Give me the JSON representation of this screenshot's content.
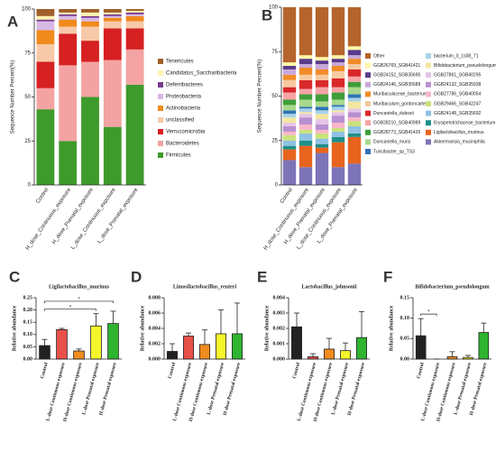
{
  "chart_data": [
    {
      "type": "stacked_bar",
      "panel": "A",
      "ylabel": "Sequence Number Percent(%)",
      "categories": [
        "Control",
        "H_dose_Continuous_exposure",
        "H_dose_Prenatal_exposure",
        "L_dose_Continuous_exposure",
        "L_dose_Prenatal_exposure"
      ],
      "ylim": [
        0,
        100
      ],
      "yticks": [
        0,
        25,
        50,
        75,
        100
      ],
      "series": [
        {
          "name": "Tenericutes",
          "color": "#a0602a",
          "values": [
            4,
            2,
            2,
            2,
            1
          ]
        },
        {
          "name": "Candidatus_Saccharibacteria",
          "color": "#fff3b0",
          "values": [
            2,
            1,
            2,
            1,
            1
          ]
        },
        {
          "name": "Deferribacteres",
          "color": "#7a3b8f",
          "values": [
            1,
            1,
            1,
            1,
            1
          ]
        },
        {
          "name": "Proteobacteria",
          "color": "#d7b9e6",
          "values": [
            5,
            2,
            2,
            1,
            1
          ]
        },
        {
          "name": "Actinobacteria",
          "color": "#f08a1c",
          "values": [
            8,
            4,
            3,
            2,
            3
          ]
        },
        {
          "name": "unclassified",
          "color": "#f7c9a8",
          "values": [
            10,
            4,
            8,
            4,
            4
          ]
        },
        {
          "name": "Verrucomicrobia",
          "color": "#d62022",
          "values": [
            15,
            18,
            12,
            18,
            12
          ]
        },
        {
          "name": "Bacteroidetes",
          "color": "#f4a3a3",
          "values": [
            12,
            43,
            20,
            38,
            20
          ]
        },
        {
          "name": "Firmicutes",
          "color": "#3f9a2c",
          "values": [
            43,
            25,
            50,
            33,
            57
          ]
        }
      ]
    },
    {
      "type": "stacked_bar",
      "panel": "B",
      "ylabel": "Sequence Number Percent(%)",
      "categories": [
        "Control",
        "H_dose_Continuous_exposure",
        "H_dose_Prenatal_exposure",
        "L_dose_Continuous_exposure",
        "L_dose_Prenatal_exposure"
      ],
      "ylim": [
        0,
        100
      ],
      "yticks": [
        0,
        25,
        50,
        75,
        100
      ],
      "series": [
        {
          "name": "Other",
          "color": "#b5642c",
          "values": [
            31,
            27,
            28,
            27,
            22
          ]
        },
        {
          "name": "GGB26769_SGB41421",
          "color": "#fff7a8",
          "values": [
            2,
            2,
            2,
            2,
            2
          ]
        },
        {
          "name": "GGB24152_SGB35695",
          "color": "#5a3b8c",
          "values": [
            2,
            3,
            2,
            2,
            3
          ]
        },
        {
          "name": "GGB24146_SGB35689",
          "color": "#c9a9d9",
          "values": [
            3,
            2,
            3,
            2,
            2
          ]
        },
        {
          "name": "Muribaculaceae_bacterium",
          "color": "#f28c28",
          "values": [
            3,
            4,
            3,
            3,
            3
          ]
        },
        {
          "name": "Muribaculum_gordoncarteri",
          "color": "#f8c9a0",
          "values": [
            4,
            3,
            3,
            4,
            3
          ]
        },
        {
          "name": "Duncaniella_dubosii",
          "color": "#d8282a",
          "values": [
            3,
            5,
            4,
            5,
            4
          ]
        },
        {
          "name": "GGB28210_SGB40989",
          "color": "#f6a3a6",
          "values": [
            4,
            3,
            4,
            3,
            3
          ]
        },
        {
          "name": "GGB28773_SGB41426",
          "color": "#3f9e3a",
          "values": [
            3,
            3,
            4,
            4,
            3
          ]
        },
        {
          "name": "Duncaniella_muris",
          "color": "#a8d98c",
          "values": [
            3,
            4,
            3,
            3,
            4
          ]
        },
        {
          "name": "Turicibacter_sp_TS3",
          "color": "#2f74b5",
          "values": [
            2,
            1,
            2,
            1,
            2
          ]
        },
        {
          "name": "bacterium_0_1s08_71",
          "color": "#a8d2ea",
          "values": [
            2,
            2,
            2,
            2,
            2
          ]
        },
        {
          "name": "Bifidobacterium_pseudolongum",
          "color": "#f2e6a0",
          "values": [
            3,
            1,
            3,
            1,
            4
          ]
        },
        {
          "name": "GGB27861_SGB40295",
          "color": "#e5c4e8",
          "values": [
            2,
            2,
            3,
            2,
            2
          ]
        },
        {
          "name": "GGB24132_SGB35938",
          "color": "#b88fd0",
          "values": [
            3,
            4,
            3,
            4,
            3
          ]
        },
        {
          "name": "GGB27786_SGB40054",
          "color": "#f9b6c8",
          "values": [
            2,
            3,
            2,
            3,
            2
          ]
        },
        {
          "name": "GGB29466_SGB42247",
          "color": "#c9e27a",
          "values": [
            3,
            2,
            3,
            2,
            3
          ]
        },
        {
          "name": "GGB24148_SGB35692",
          "color": "#8fc1e3",
          "values": [
            3,
            4,
            3,
            3,
            4
          ]
        },
        {
          "name": "Erysipelotrichaceae_bacterium",
          "color": "#1f8f8a",
          "values": [
            2,
            3,
            2,
            3,
            2
          ]
        },
        {
          "name": "Ligilactobacillus_murinus",
          "color": "#e8641e",
          "values": [
            6,
            12,
            3,
            14,
            15
          ]
        },
        {
          "name": "Akkermansia_muciniphila",
          "color": "#7d74b8",
          "values": [
            14,
            10,
            18,
            10,
            12
          ]
        }
      ]
    },
    {
      "type": "bar",
      "panel": "C",
      "title": "Ligilactobacillus_murinus",
      "ylabel": "Relative abundance",
      "categories": [
        "Control",
        "L-dose Continuous exposure",
        "H-dose Continuous exposure",
        "L-dose Prenatal exposure",
        "H-dose Prenatal exposure"
      ],
      "colors": [
        "#222222",
        "#e8504a",
        "#f08c1e",
        "#f5f52a",
        "#2fb52f"
      ],
      "values": [
        0.055,
        0.12,
        0.033,
        0.135,
        0.145
      ],
      "errors": [
        0.025,
        0.005,
        0.008,
        0.05,
        0.05
      ],
      "ylim": [
        0,
        0.25
      ],
      "yticks": [
        {
          "value": 0,
          "label": "0.00"
        },
        0.05,
        {
          "value": 0.1,
          "label": "0.10"
        },
        0.15,
        {
          "value": 0.2,
          "label": "0.20"
        },
        0.25
      ],
      "significance": [
        {
          "from": 0,
          "to": 3,
          "label": "*"
        },
        {
          "from": 0,
          "to": 4,
          "label": "*"
        }
      ]
    },
    {
      "type": "bar",
      "panel": "D",
      "title": "Limosilactobacillus_reuteri",
      "ylabel": "Relative abundance",
      "categories": [
        "Control",
        "L-dose Continuous exposure",
        "H-dose Continuous exposure",
        "L-dose Prenatal exposure",
        "H-dose Prenatal exposure"
      ],
      "colors": [
        "#222222",
        "#e8504a",
        "#f08c1e",
        "#f5f52a",
        "#2fb52f"
      ],
      "values": [
        0.001,
        0.003,
        0.0019,
        0.0033,
        0.0033
      ],
      "errors": [
        0.001,
        0.0004,
        0.0019,
        0.0031,
        0.004
      ],
      "ylim": [
        0,
        0.008
      ],
      "yticks": [
        {
          "value": 0,
          "label": "0.000"
        },
        0.002,
        0.004,
        0.006,
        0.008
      ]
    },
    {
      "type": "bar",
      "panel": "E",
      "title": "Lactobacillus_johnsonii",
      "ylabel": "Relative abundance",
      "categories": [
        "Control",
        "L-dose Continuous exposure",
        "H-dose Continuous exposure",
        "L-dose Prenatal exposure",
        "H-dose Prenatal exposure"
      ],
      "colors": [
        "#222222",
        "#e8504a",
        "#f08c1e",
        "#f5f52a",
        "#2fb52f"
      ],
      "values": [
        0.0021,
        0.00015,
        0.00065,
        0.00055,
        0.0014
      ],
      "errors": [
        0.0009,
        0.0002,
        0.0007,
        0.0005,
        0.0017
      ],
      "ylim": [
        0,
        0.004
      ],
      "yticks": [
        {
          "value": 0,
          "label": "0.000"
        },
        0.001,
        0.002,
        0.003,
        0.004
      ]
    },
    {
      "type": "bar",
      "panel": "F",
      "title": "Bifidobacterium_pseudolongum",
      "ylabel": "Relative abundance",
      "categories": [
        "Control",
        "L-dose Continuous exposure",
        "H-dose Continuous exposure",
        "L-dose Prenatal exposure",
        "H-dose Prenatal exposure"
      ],
      "colors": [
        "#222222",
        "#e8504a",
        "#f08c1e",
        "#f5f52a",
        "#2fb52f"
      ],
      "values": [
        0.057,
        0,
        0.006,
        0.004,
        0.065
      ],
      "errors": [
        0.042,
        0,
        0.012,
        0.005,
        0.023
      ],
      "ylim": [
        0,
        0.15
      ],
      "yticks": [
        {
          "value": 0,
          "label": "0.00"
        },
        0.05,
        {
          "value": 0.1,
          "label": "0.10"
        },
        0.15
      ],
      "significance": [
        {
          "from": 0,
          "to": 1,
          "label": "*"
        }
      ]
    }
  ]
}
